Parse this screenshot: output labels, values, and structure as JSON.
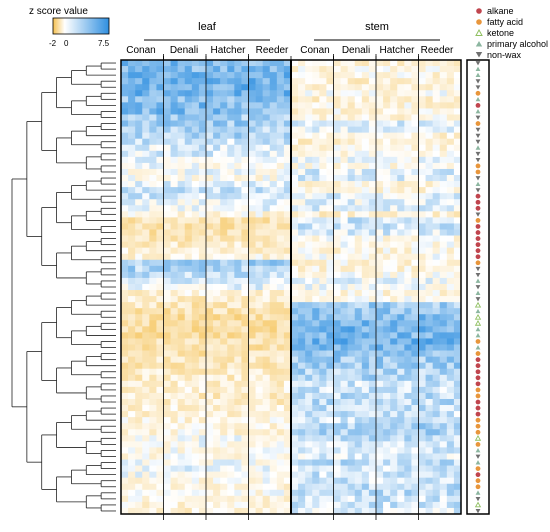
{
  "chart_data": {
    "type": "heatmap",
    "colorbar": {
      "title": "z score value",
      "min": -2,
      "max": 7.5,
      "min_label": "-2",
      "zero_label": "0",
      "max_label": "7.5",
      "low_color": "#f5c050",
      "mid_color": "#ffffff",
      "high_color": "#2f8fe0"
    },
    "tissues": [
      {
        "label": "leaf",
        "cultivars": [
          "Conan",
          "Denali",
          "Hatcher",
          "Reeder"
        ]
      },
      {
        "label": "stem",
        "cultivars": [
          "Conan",
          "Denali",
          "Hatcher",
          "Reeder"
        ]
      }
    ],
    "columns_per_cultivar": 6,
    "row_count": 75,
    "dendrogram": "rows, hierarchical clustering",
    "legend": [
      {
        "label": "alkane",
        "marker": "circle",
        "color": "#c0454e"
      },
      {
        "label": "fatty acid",
        "marker": "circle",
        "color": "#e8963c"
      },
      {
        "label": "ketone",
        "marker": "triangle-up-open",
        "color": "#8fbf60"
      },
      {
        "label": "primary alcohol",
        "marker": "triangle-up",
        "color": "#8cb6a0"
      },
      {
        "label": "non-wax",
        "marker": "triangle-down",
        "color": "#6f6f6f"
      }
    ],
    "row_classes": [
      "non-wax",
      "primary alcohol",
      "primary alcohol",
      "non-wax",
      "non-wax",
      "fatty acid",
      "primary alcohol",
      "alkane",
      "primary alcohol",
      "non-wax",
      "fatty acid",
      "non-wax",
      "non-wax",
      "non-wax",
      "primary alcohol",
      "non-wax",
      "non-wax",
      "fatty acid",
      "fatty acid",
      "non-wax",
      "primary alcohol",
      "non-wax",
      "alkane",
      "alkane",
      "alkane",
      "non-wax",
      "fatty acid",
      "alkane",
      "alkane",
      "alkane",
      "alkane",
      "alkane",
      "alkane",
      "fatty acid",
      "non-wax",
      "non-wax",
      "primary alcohol",
      "non-wax",
      "primary alcohol",
      "non-wax",
      "ketone",
      "primary alcohol",
      "ketone",
      "ketone",
      "primary alcohol",
      "primary alcohol",
      "fatty acid",
      "primary alcohol",
      "fatty acid",
      "alkane",
      "alkane",
      "alkane",
      "alkane",
      "alkane",
      "fatty acid",
      "fatty acid",
      "alkane",
      "alkane",
      "alkane",
      "fatty acid",
      "fatty acid",
      "fatty acid",
      "ketone",
      "fatty acid",
      "primary alcohol",
      "non-wax",
      "primary alcohol",
      "fatty acid",
      "alkane",
      "fatty acid",
      "fatty acid",
      "primary alcohol",
      "non-wax",
      "ketone",
      "non-wax"
    ],
    "row_cluster_profile_leaf": [
      0.8,
      0.8,
      0.9,
      0.9,
      0.9,
      0.9,
      0.7,
      0.8,
      0.8,
      0.6,
      0.6,
      0.5,
      0.5,
      0.3,
      0.2,
      0.2,
      0.1,
      0.0,
      0.0,
      -0.1,
      0.2,
      0.3,
      0.3,
      0.1,
      0.1,
      -0.2,
      -0.6,
      -0.6,
      -0.6,
      -0.5,
      -0.4,
      -0.3,
      -0.2,
      0.6,
      0.5,
      0.4,
      0.2,
      0.1,
      -0.3,
      -0.4,
      -0.5,
      -0.6,
      -0.7,
      -0.7,
      -0.7,
      -0.7,
      -0.6,
      -0.6,
      -0.6,
      -0.5,
      -0.5,
      -0.4,
      -0.4,
      -0.3,
      -0.3,
      -0.4,
      -0.4,
      -0.3,
      -0.3,
      -0.2,
      -0.2,
      -0.2,
      0.0,
      0.0,
      -0.1,
      -0.1,
      0.0,
      0.1,
      0.0,
      -0.1,
      -0.2,
      -0.1,
      -0.2,
      -0.2,
      -0.3
    ],
    "row_cluster_profile_stem": [
      -0.3,
      -0.2,
      -0.2,
      -0.3,
      -0.2,
      -0.1,
      -0.3,
      -0.2,
      -0.2,
      -0.2,
      0.2,
      0.1,
      -0.3,
      -0.3,
      -0.2,
      -0.1,
      0.0,
      -0.1,
      0.2,
      0.2,
      -0.2,
      -0.2,
      0.2,
      0.1,
      0.2,
      -0.3,
      0.3,
      0.3,
      0.2,
      -0.1,
      -0.1,
      -0.2,
      -0.1,
      -0.2,
      -0.2,
      -0.1,
      0.1,
      0.0,
      -0.2,
      -0.1,
      0.6,
      0.7,
      0.8,
      0.8,
      0.9,
      0.8,
      0.9,
      0.8,
      0.7,
      0.6,
      0.6,
      0.5,
      0.5,
      0.3,
      0.3,
      0.4,
      0.4,
      0.4,
      0.3,
      0.3,
      0.5,
      0.5,
      0.4,
      0.3,
      0.3,
      0.2,
      0.4,
      0.3,
      0.3,
      0.3,
      0.4,
      0.4,
      0.3,
      0.3,
      0.2
    ]
  }
}
